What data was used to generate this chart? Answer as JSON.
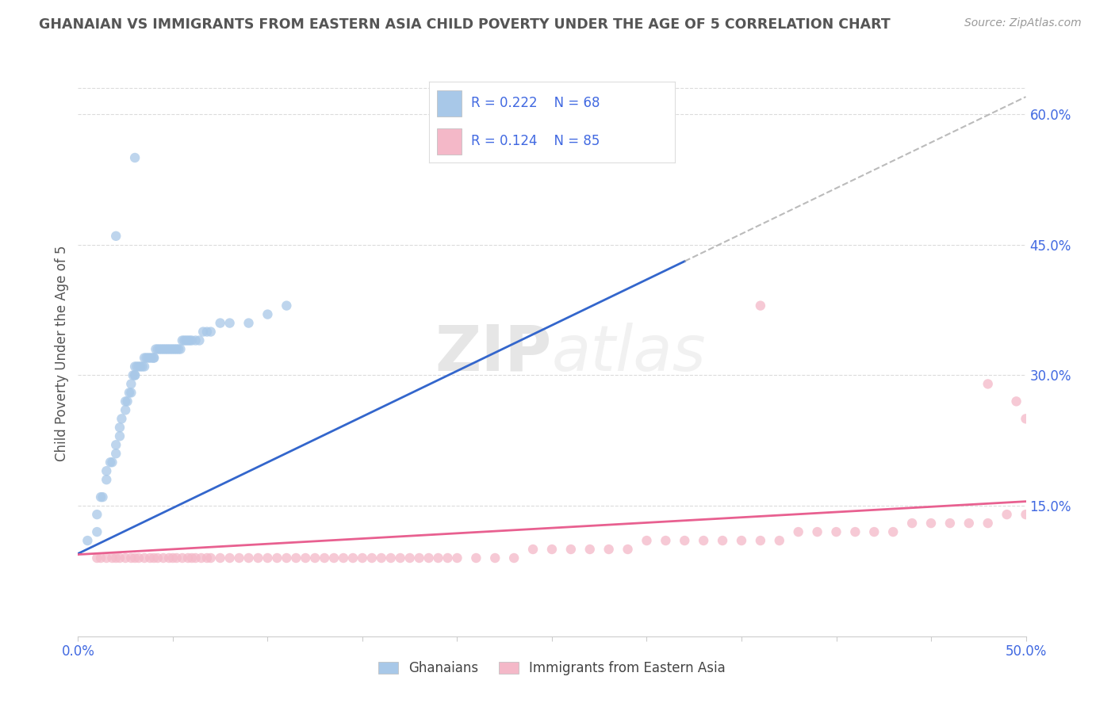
{
  "title": "GHANAIAN VS IMMIGRANTS FROM EASTERN ASIA CHILD POVERTY UNDER THE AGE OF 5 CORRELATION CHART",
  "source_text": "Source: ZipAtlas.com",
  "ylabel": "Child Poverty Under the Age of 5",
  "xlim": [
    0.0,
    0.5
  ],
  "ylim": [
    0.0,
    0.65
  ],
  "yticks_right": [
    0.15,
    0.3,
    0.45,
    0.6
  ],
  "grid_color": "#cccccc",
  "background_color": "#ffffff",
  "blue_color": "#a8c8e8",
  "pink_color": "#f4b8c8",
  "blue_line_color": "#3366cc",
  "pink_line_color": "#e86090",
  "axis_label_color": "#4169e1",
  "title_color": "#555555",
  "watermark_zip": "ZIP",
  "watermark_atlas": "atlas",
  "blue_scatter_x": [
    0.005,
    0.01,
    0.01,
    0.012,
    0.013,
    0.015,
    0.015,
    0.017,
    0.018,
    0.02,
    0.02,
    0.022,
    0.022,
    0.023,
    0.025,
    0.025,
    0.026,
    0.027,
    0.028,
    0.028,
    0.029,
    0.03,
    0.03,
    0.03,
    0.031,
    0.032,
    0.033,
    0.034,
    0.035,
    0.035,
    0.036,
    0.037,
    0.038,
    0.039,
    0.04,
    0.04,
    0.041,
    0.042,
    0.043,
    0.044,
    0.045,
    0.046,
    0.047,
    0.048,
    0.049,
    0.05,
    0.051,
    0.052,
    0.053,
    0.054,
    0.055,
    0.056,
    0.057,
    0.058,
    0.059,
    0.06,
    0.062,
    0.064,
    0.066,
    0.068,
    0.07,
    0.075,
    0.08,
    0.09,
    0.1,
    0.11,
    0.03,
    0.02
  ],
  "blue_scatter_y": [
    0.11,
    0.12,
    0.14,
    0.16,
    0.16,
    0.18,
    0.19,
    0.2,
    0.2,
    0.21,
    0.22,
    0.23,
    0.24,
    0.25,
    0.26,
    0.27,
    0.27,
    0.28,
    0.28,
    0.29,
    0.3,
    0.3,
    0.3,
    0.31,
    0.31,
    0.31,
    0.31,
    0.31,
    0.31,
    0.32,
    0.32,
    0.32,
    0.32,
    0.32,
    0.32,
    0.32,
    0.33,
    0.33,
    0.33,
    0.33,
    0.33,
    0.33,
    0.33,
    0.33,
    0.33,
    0.33,
    0.33,
    0.33,
    0.33,
    0.33,
    0.34,
    0.34,
    0.34,
    0.34,
    0.34,
    0.34,
    0.34,
    0.34,
    0.35,
    0.35,
    0.35,
    0.36,
    0.36,
    0.36,
    0.37,
    0.38,
    0.55,
    0.46
  ],
  "pink_scatter_x": [
    0.01,
    0.012,
    0.015,
    0.018,
    0.02,
    0.022,
    0.025,
    0.028,
    0.03,
    0.032,
    0.035,
    0.038,
    0.04,
    0.042,
    0.045,
    0.048,
    0.05,
    0.052,
    0.055,
    0.058,
    0.06,
    0.062,
    0.065,
    0.068,
    0.07,
    0.075,
    0.08,
    0.085,
    0.09,
    0.095,
    0.1,
    0.105,
    0.11,
    0.115,
    0.12,
    0.125,
    0.13,
    0.135,
    0.14,
    0.145,
    0.15,
    0.155,
    0.16,
    0.165,
    0.17,
    0.175,
    0.18,
    0.185,
    0.19,
    0.195,
    0.2,
    0.21,
    0.22,
    0.23,
    0.24,
    0.25,
    0.26,
    0.27,
    0.28,
    0.29,
    0.3,
    0.31,
    0.32,
    0.33,
    0.34,
    0.35,
    0.36,
    0.37,
    0.38,
    0.39,
    0.4,
    0.41,
    0.42,
    0.43,
    0.44,
    0.45,
    0.46,
    0.47,
    0.48,
    0.49,
    0.5,
    0.36,
    0.48,
    0.495,
    0.5
  ],
  "pink_scatter_y": [
    0.09,
    0.09,
    0.09,
    0.09,
    0.09,
    0.09,
    0.09,
    0.09,
    0.09,
    0.09,
    0.09,
    0.09,
    0.09,
    0.09,
    0.09,
    0.09,
    0.09,
    0.09,
    0.09,
    0.09,
    0.09,
    0.09,
    0.09,
    0.09,
    0.09,
    0.09,
    0.09,
    0.09,
    0.09,
    0.09,
    0.09,
    0.09,
    0.09,
    0.09,
    0.09,
    0.09,
    0.09,
    0.09,
    0.09,
    0.09,
    0.09,
    0.09,
    0.09,
    0.09,
    0.09,
    0.09,
    0.09,
    0.09,
    0.09,
    0.09,
    0.09,
    0.09,
    0.09,
    0.09,
    0.1,
    0.1,
    0.1,
    0.1,
    0.1,
    0.1,
    0.11,
    0.11,
    0.11,
    0.11,
    0.11,
    0.11,
    0.11,
    0.11,
    0.12,
    0.12,
    0.12,
    0.12,
    0.12,
    0.12,
    0.13,
    0.13,
    0.13,
    0.13,
    0.13,
    0.14,
    0.14,
    0.38,
    0.29,
    0.27,
    0.25
  ],
  "blue_trend_x": [
    0.0,
    0.5
  ],
  "blue_trend_y": [
    0.095,
    0.62
  ],
  "blue_trend_solid_end": 0.32,
  "pink_trend_x": [
    0.0,
    0.5
  ],
  "pink_trend_y": [
    0.094,
    0.155
  ],
  "legend_label1": "Ghanaians",
  "legend_label2": "Immigrants from Eastern Asia"
}
